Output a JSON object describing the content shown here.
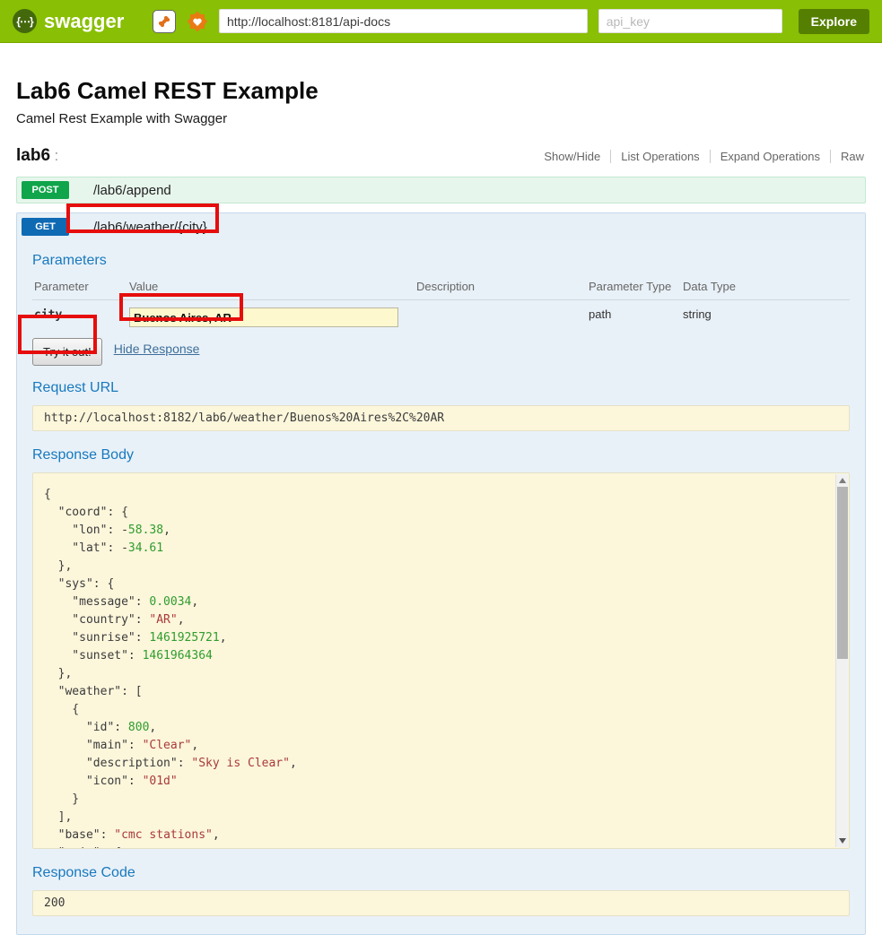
{
  "header": {
    "brand": "swagger",
    "logo_glyph": "{⋯}",
    "url_value": "http://localhost:8181/api-docs",
    "api_key_placeholder": "api_key",
    "explore_label": "Explore"
  },
  "info": {
    "title": "Lab6 Camel REST Example",
    "subtitle": "Camel Rest Example with Swagger"
  },
  "resource": {
    "name": "lab6",
    "colon": ":",
    "links": [
      "Show/Hide",
      "List Operations",
      "Expand Operations",
      "Raw"
    ]
  },
  "endpoints": {
    "post": {
      "method": "POST",
      "path": "/lab6/append"
    },
    "get": {
      "method": "GET",
      "path": "/lab6/weather/{city}"
    }
  },
  "parameters": {
    "heading": "Parameters",
    "columns": [
      "Parameter",
      "Value",
      "Description",
      "Parameter Type",
      "Data Type"
    ],
    "row": {
      "name": "city",
      "value": "Buenos Aires, AR",
      "description": "",
      "param_type": "path",
      "data_type": "string"
    }
  },
  "actions": {
    "try_it_out": "Try it out!",
    "hide_response": "Hide Response"
  },
  "request_url": {
    "heading": "Request URL",
    "value": "http://localhost:8182/lab6/weather/Buenos%20Aires%2C%20AR"
  },
  "response_body": {
    "heading": "Response Body",
    "lines": [
      [
        [
          "p",
          "{"
        ]
      ],
      [
        [
          "p",
          "  \"coord\": {"
        ]
      ],
      [
        [
          "p",
          "    \"lon\": -"
        ],
        [
          "n",
          "58.38"
        ],
        [
          "p",
          ","
        ]
      ],
      [
        [
          "p",
          "    \"lat\": -"
        ],
        [
          "n",
          "34.61"
        ]
      ],
      [
        [
          "p",
          "  },"
        ]
      ],
      [
        [
          "p",
          "  \"sys\": {"
        ]
      ],
      [
        [
          "p",
          "    \"message\": "
        ],
        [
          "n",
          "0.0034"
        ],
        [
          "p",
          ","
        ]
      ],
      [
        [
          "p",
          "    \"country\": "
        ],
        [
          "s",
          "\"AR\""
        ],
        [
          "p",
          ","
        ]
      ],
      [
        [
          "p",
          "    \"sunrise\": "
        ],
        [
          "n",
          "1461925721"
        ],
        [
          "p",
          ","
        ]
      ],
      [
        [
          "p",
          "    \"sunset\": "
        ],
        [
          "n",
          "1461964364"
        ]
      ],
      [
        [
          "p",
          "  },"
        ]
      ],
      [
        [
          "p",
          "  \"weather\": ["
        ]
      ],
      [
        [
          "p",
          "    {"
        ]
      ],
      [
        [
          "p",
          "      \"id\": "
        ],
        [
          "n",
          "800"
        ],
        [
          "p",
          ","
        ]
      ],
      [
        [
          "p",
          "      \"main\": "
        ],
        [
          "s",
          "\"Clear\""
        ],
        [
          "p",
          ","
        ]
      ],
      [
        [
          "p",
          "      \"description\": "
        ],
        [
          "s",
          "\"Sky is Clear\""
        ],
        [
          "p",
          ","
        ]
      ],
      [
        [
          "p",
          "      \"icon\": "
        ],
        [
          "s",
          "\"01d\""
        ]
      ],
      [
        [
          "p",
          "    }"
        ]
      ],
      [
        [
          "p",
          "  ],"
        ]
      ],
      [
        [
          "p",
          "  \"base\": "
        ],
        [
          "s",
          "\"cmc stations\""
        ],
        [
          "p",
          ","
        ]
      ],
      [
        [
          "p",
          "  \"main\": {"
        ]
      ]
    ]
  },
  "response_code": {
    "heading": "Response Code",
    "value": "200"
  }
}
